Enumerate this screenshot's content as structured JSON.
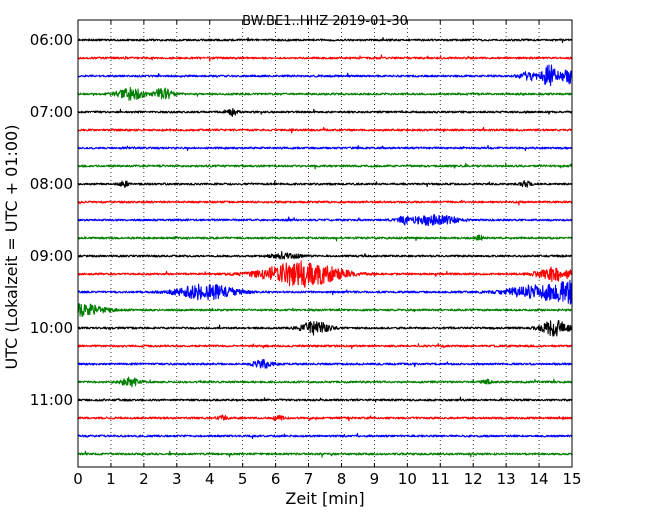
{
  "chart_data": {
    "type": "line",
    "title": "BW.BE1..HHZ 2019-01-30",
    "xlabel": "Zeit  [min]",
    "ylabel": "UTC (Lokalzeit = UTC + 01:00)",
    "xlim": [
      0,
      15
    ],
    "x_ticks": [
      "0",
      "1",
      "2",
      "3",
      "4",
      "5",
      "6",
      "7",
      "8",
      "9",
      "10",
      "11",
      "12",
      "13",
      "14",
      "15"
    ],
    "y_ticks": [
      "06:00",
      "07:00",
      "08:00",
      "09:00",
      "10:00",
      "11:00"
    ],
    "row_interval_min": 15,
    "grid": "vertical dotted",
    "colors": [
      "#000000",
      "#ff0000",
      "#0000ff",
      "#007f00"
    ],
    "series": [
      {
        "start": "06:00",
        "color": "#000000",
        "events": []
      },
      {
        "start": "06:15",
        "color": "#ff0000",
        "events": []
      },
      {
        "start": "06:30",
        "color": "#0000ff",
        "events": [
          {
            "t": 13.7,
            "amp": 0.3,
            "dur": 0.2
          },
          {
            "t": 14.3,
            "amp": 0.8,
            "dur": 0.15
          },
          {
            "t": 14.9,
            "amp": 0.5,
            "dur": 0.2
          }
        ]
      },
      {
        "start": "06:45",
        "color": "#007f00",
        "events": [
          {
            "t": 1.6,
            "amp": 0.4,
            "dur": 0.3
          },
          {
            "t": 2.6,
            "amp": 0.4,
            "dur": 0.2
          }
        ]
      },
      {
        "start": "07:00",
        "color": "#000000",
        "events": [
          {
            "t": 4.7,
            "amp": 0.2,
            "dur": 0.1
          }
        ]
      },
      {
        "start": "07:15",
        "color": "#ff0000",
        "events": []
      },
      {
        "start": "07:30",
        "color": "#0000ff",
        "events": []
      },
      {
        "start": "07:45",
        "color": "#007f00",
        "events": []
      },
      {
        "start": "08:00",
        "color": "#000000",
        "events": [
          {
            "t": 1.4,
            "amp": 0.2,
            "dur": 0.1
          },
          {
            "t": 13.6,
            "amp": 0.2,
            "dur": 0.1
          }
        ]
      },
      {
        "start": "08:15",
        "color": "#ff0000",
        "events": []
      },
      {
        "start": "08:30",
        "color": "#0000ff",
        "events": [
          {
            "t": 9.9,
            "amp": 0.25,
            "dur": 0.1
          },
          {
            "t": 10.8,
            "amp": 0.35,
            "dur": 0.5
          }
        ]
      },
      {
        "start": "08:45",
        "color": "#007f00",
        "events": [
          {
            "t": 12.2,
            "amp": 0.15,
            "dur": 0.1
          }
        ]
      },
      {
        "start": "09:00",
        "color": "#000000",
        "events": [
          {
            "t": 6.3,
            "amp": 0.2,
            "dur": 0.3
          }
        ]
      },
      {
        "start": "09:15",
        "color": "#ff0000",
        "events": [
          {
            "t": 6.8,
            "amp": 0.9,
            "dur": 0.8
          },
          {
            "t": 14.5,
            "amp": 0.5,
            "dur": 0.4
          }
        ]
      },
      {
        "start": "09:30",
        "color": "#0000ff",
        "events": [
          {
            "t": 3.9,
            "amp": 0.55,
            "dur": 0.6
          },
          {
            "t": 14.1,
            "amp": 0.55,
            "dur": 0.7
          },
          {
            "t": 14.9,
            "amp": 0.6,
            "dur": 0.2
          }
        ]
      },
      {
        "start": "09:45",
        "color": "#007f00",
        "events": [
          {
            "t": 0.1,
            "amp": 0.4,
            "dur": 0.5
          }
        ]
      },
      {
        "start": "10:00",
        "color": "#000000",
        "events": [
          {
            "t": 7.2,
            "amp": 0.45,
            "dur": 0.3
          },
          {
            "t": 14.5,
            "amp": 0.55,
            "dur": 0.3
          }
        ]
      },
      {
        "start": "10:15",
        "color": "#ff0000",
        "events": []
      },
      {
        "start": "10:30",
        "color": "#0000ff",
        "events": [
          {
            "t": 5.6,
            "amp": 0.3,
            "dur": 0.2
          }
        ]
      },
      {
        "start": "10:45",
        "color": "#007f00",
        "events": [
          {
            "t": 1.6,
            "amp": 0.3,
            "dur": 0.2
          },
          {
            "t": 12.4,
            "amp": 0.15,
            "dur": 0.1
          }
        ]
      },
      {
        "start": "11:00",
        "color": "#000000",
        "events": []
      },
      {
        "start": "11:15",
        "color": "#ff0000",
        "events": [
          {
            "t": 4.4,
            "amp": 0.15,
            "dur": 0.1
          },
          {
            "t": 6.1,
            "amp": 0.15,
            "dur": 0.1
          }
        ]
      },
      {
        "start": "11:30",
        "color": "#0000ff",
        "events": []
      },
      {
        "start": "11:45",
        "color": "#007f00",
        "events": []
      }
    ]
  }
}
